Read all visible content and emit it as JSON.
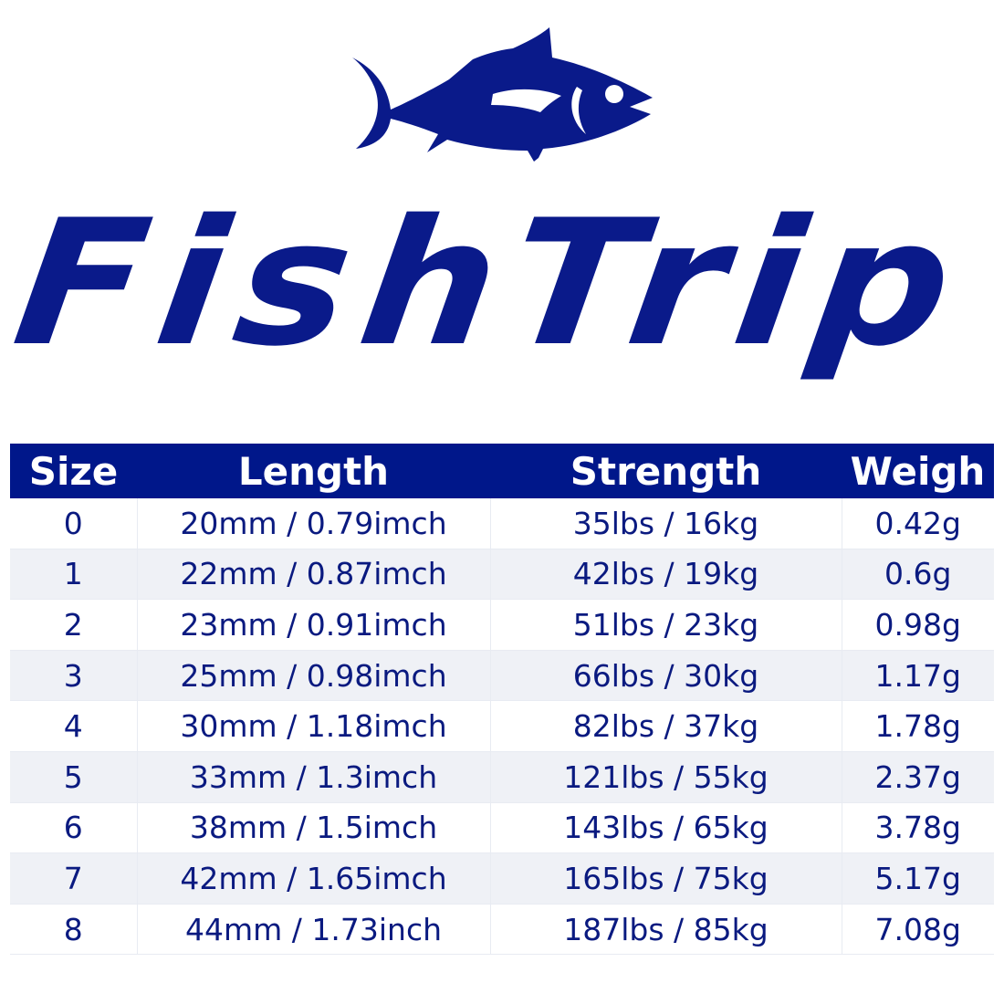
{
  "brand": {
    "logo_text": "FishTrip",
    "color": "#0a1a8a"
  },
  "table": {
    "header_color": "#00178a",
    "columns": [
      "Size",
      "Length",
      "Strength",
      "Weigh"
    ],
    "rows": [
      [
        "0",
        "20mm / 0.79imch",
        "35lbs / 16kg",
        "0.42g"
      ],
      [
        "1",
        "22mm / 0.87imch",
        "42lbs / 19kg",
        "0.6g"
      ],
      [
        "2",
        "23mm / 0.91imch",
        "51lbs / 23kg",
        "0.98g"
      ],
      [
        "3",
        "25mm / 0.98imch",
        "66lbs / 30kg",
        "1.17g"
      ],
      [
        "4",
        "30mm / 1.18imch",
        "82lbs / 37kg",
        "1.78g"
      ],
      [
        "5",
        "33mm / 1.3imch",
        "121lbs / 55kg",
        "2.37g"
      ],
      [
        "6",
        "38mm / 1.5imch",
        "143lbs / 65kg",
        "3.78g"
      ],
      [
        "7",
        "42mm / 1.65imch",
        "165lbs / 75kg",
        "5.17g"
      ],
      [
        "8",
        "44mm / 1.73inch",
        "187lbs / 85kg",
        "7.08g"
      ]
    ]
  }
}
